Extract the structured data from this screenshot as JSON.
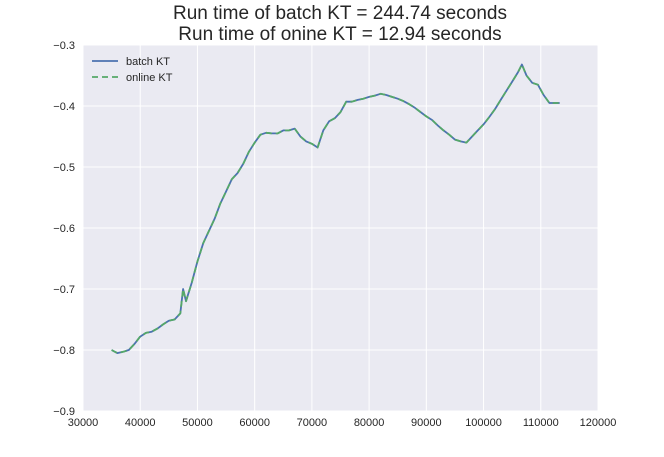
{
  "chart_data": {
    "type": "line",
    "title_lines": [
      "Run time of batch KT = 244.74 seconds",
      "Run time of onine KT = 12.94 seconds"
    ],
    "xlabel": "",
    "ylabel": "",
    "xlim": [
      30000,
      120000
    ],
    "ylim": [
      -0.9,
      -0.3
    ],
    "xticks": [
      30000,
      40000,
      50000,
      60000,
      70000,
      80000,
      90000,
      100000,
      110000,
      120000
    ],
    "xtick_labels": [
      "30000",
      "40000",
      "50000",
      "60000",
      "70000",
      "80000",
      "90000",
      "100000",
      "110000",
      "120000"
    ],
    "yticks": [
      -0.3,
      -0.4,
      -0.5,
      -0.6,
      -0.7,
      -0.8,
      -0.9
    ],
    "ytick_labels": [
      "−0.3",
      "−0.4",
      "−0.5",
      "−0.6",
      "−0.7",
      "−0.8",
      "−0.9"
    ],
    "grid": true,
    "legend_position": "top-left",
    "series": [
      {
        "name": "batch KT",
        "color": "#4c72b0",
        "style": "solid",
        "x": [
          35000,
          36000,
          37000,
          38000,
          39000,
          40000,
          41000,
          42000,
          43000,
          44000,
          45000,
          46000,
          47000,
          47500,
          48000,
          49000,
          50000,
          51000,
          52000,
          53000,
          54000,
          55000,
          56000,
          57000,
          58000,
          59000,
          60000,
          61000,
          62000,
          63000,
          64000,
          65000,
          66000,
          67000,
          68000,
          69000,
          70000,
          71000,
          72000,
          73000,
          74000,
          75000,
          76000,
          77000,
          78000,
          79000,
          80000,
          81000,
          82000,
          83000,
          84000,
          85000,
          86000,
          87000,
          88000,
          89000,
          90000,
          91000,
          92000,
          93000,
          94000,
          95000,
          96000,
          97000,
          98000,
          99000,
          100000,
          101000,
          102000,
          103000,
          104000,
          105000,
          106000,
          106700,
          107500,
          108500,
          109500,
          110500,
          111500,
          112200,
          113300
        ],
        "y": [
          -0.8,
          -0.805,
          -0.803,
          -0.8,
          -0.79,
          -0.778,
          -0.772,
          -0.77,
          -0.765,
          -0.758,
          -0.752,
          -0.75,
          -0.74,
          -0.7,
          -0.72,
          -0.69,
          -0.655,
          -0.625,
          -0.605,
          -0.585,
          -0.56,
          -0.54,
          -0.52,
          -0.51,
          -0.495,
          -0.475,
          -0.46,
          -0.447,
          -0.444,
          -0.445,
          -0.445,
          -0.44,
          -0.44,
          -0.437,
          -0.45,
          -0.458,
          -0.462,
          -0.468,
          -0.44,
          -0.425,
          -0.42,
          -0.41,
          -0.393,
          -0.393,
          -0.39,
          -0.388,
          -0.385,
          -0.383,
          -0.38,
          -0.382,
          -0.385,
          -0.388,
          -0.392,
          -0.397,
          -0.403,
          -0.41,
          -0.417,
          -0.423,
          -0.432,
          -0.44,
          -0.447,
          -0.455,
          -0.458,
          -0.46,
          -0.45,
          -0.44,
          -0.43,
          -0.418,
          -0.405,
          -0.39,
          -0.375,
          -0.36,
          -0.345,
          -0.332,
          -0.35,
          -0.362,
          -0.365,
          -0.382,
          -0.395,
          -0.395,
          -0.395
        ]
      },
      {
        "name": "online KT",
        "color": "#55a868",
        "style": "dashed",
        "x": [
          35000,
          36000,
          37000,
          38000,
          39000,
          40000,
          41000,
          42000,
          43000,
          44000,
          45000,
          46000,
          47000,
          47500,
          48000,
          49000,
          50000,
          51000,
          52000,
          53000,
          54000,
          55000,
          56000,
          57000,
          58000,
          59000,
          60000,
          61000,
          62000,
          63000,
          64000,
          65000,
          66000,
          67000,
          68000,
          69000,
          70000,
          71000,
          72000,
          73000,
          74000,
          75000,
          76000,
          77000,
          78000,
          79000,
          80000,
          81000,
          82000,
          83000,
          84000,
          85000,
          86000,
          87000,
          88000,
          89000,
          90000,
          91000,
          92000,
          93000,
          94000,
          95000,
          96000,
          97000,
          98000,
          99000,
          100000,
          101000,
          102000,
          103000,
          104000,
          105000,
          106000,
          106700,
          107500,
          108500,
          109500,
          110500,
          111500,
          112200,
          113300
        ],
        "y": [
          -0.8,
          -0.805,
          -0.803,
          -0.8,
          -0.79,
          -0.778,
          -0.772,
          -0.77,
          -0.765,
          -0.758,
          -0.752,
          -0.75,
          -0.74,
          -0.7,
          -0.72,
          -0.69,
          -0.655,
          -0.625,
          -0.605,
          -0.585,
          -0.56,
          -0.54,
          -0.52,
          -0.51,
          -0.495,
          -0.475,
          -0.46,
          -0.447,
          -0.444,
          -0.445,
          -0.445,
          -0.44,
          -0.44,
          -0.437,
          -0.45,
          -0.458,
          -0.462,
          -0.468,
          -0.44,
          -0.425,
          -0.42,
          -0.41,
          -0.393,
          -0.393,
          -0.39,
          -0.388,
          -0.385,
          -0.383,
          -0.38,
          -0.382,
          -0.385,
          -0.388,
          -0.392,
          -0.397,
          -0.403,
          -0.41,
          -0.417,
          -0.423,
          -0.432,
          -0.44,
          -0.447,
          -0.455,
          -0.458,
          -0.46,
          -0.45,
          -0.44,
          -0.43,
          -0.418,
          -0.405,
          -0.39,
          -0.375,
          -0.36,
          -0.345,
          -0.332,
          -0.35,
          -0.362,
          -0.365,
          -0.382,
          -0.395,
          -0.395,
          -0.395
        ]
      }
    ],
    "colors": {
      "plot_background": "#eaeaf2",
      "grid": "#ffffff",
      "text": "#262626"
    }
  }
}
